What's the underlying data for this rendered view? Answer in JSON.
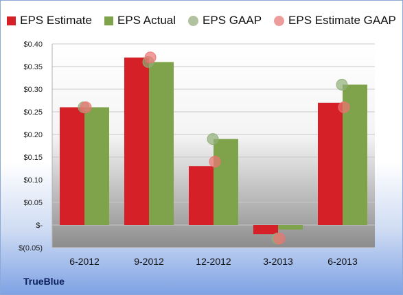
{
  "chart_data": {
    "type": "bar",
    "title": "",
    "xlabel": "",
    "ylabel": "",
    "categories": [
      "6-2012",
      "9-2012",
      "12-2012",
      "3-2013",
      "6-2013"
    ],
    "ylim": [
      -0.05,
      0.4
    ],
    "yticks": [
      -0.05,
      0,
      0.05,
      0.1,
      0.15,
      0.2,
      0.25,
      0.3,
      0.35,
      0.4
    ],
    "ytick_labels": [
      "$(0.05)",
      "$-",
      "$0.05",
      "$0.10",
      "$0.15",
      "$0.20",
      "$0.25",
      "$0.30",
      "$0.35",
      "$0.40"
    ],
    "legend_position": "top",
    "bar_series": [
      {
        "name": "EPS Estimate",
        "color": "#d42026",
        "values": [
          0.26,
          0.37,
          0.13,
          -0.02,
          0.27
        ]
      },
      {
        "name": "EPS Actual",
        "color": "#7fa34a",
        "values": [
          0.26,
          0.36,
          0.19,
          -0.01,
          0.31
        ]
      }
    ],
    "marker_series": [
      {
        "name": "EPS GAAP",
        "color": "#8fae76",
        "values": [
          0.26,
          0.36,
          0.19,
          -0.03,
          0.31
        ]
      },
      {
        "name": "EPS Estimate GAAP",
        "color": "#ee7272",
        "values": [
          0.26,
          0.37,
          0.14,
          -0.03,
          0.26
        ]
      }
    ]
  },
  "company": "TrueBlue"
}
